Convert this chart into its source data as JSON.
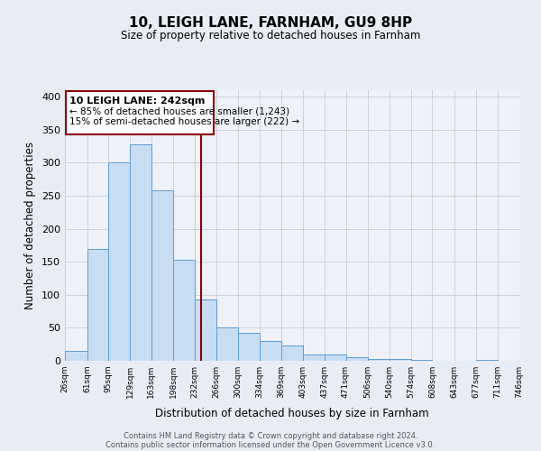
{
  "title": "10, LEIGH LANE, FARNHAM, GU9 8HP",
  "subtitle": "Size of property relative to detached houses in Farnham",
  "xlabel": "Distribution of detached houses by size in Farnham",
  "ylabel": "Number of detached properties",
  "bin_edges": [
    26,
    61,
    95,
    129,
    163,
    198,
    232,
    266,
    300,
    334,
    369,
    403,
    437,
    471,
    506,
    540,
    574,
    608,
    643,
    677,
    711
  ],
  "bar_heights": [
    15,
    170,
    300,
    328,
    258,
    153,
    93,
    50,
    43,
    30,
    23,
    10,
    10,
    5,
    3,
    3,
    1,
    0,
    0,
    2
  ],
  "bar_color": "#c9ddf2",
  "bar_edge_color": "#5b9bd5",
  "vline_x": 242,
  "vline_color": "#8b0000",
  "annotation_title": "10 LEIGH LANE: 242sqm",
  "annotation_line1": "← 85% of detached houses are smaller (1,243)",
  "annotation_line2": "15% of semi-detached houses are larger (222) →",
  "annotation_box_edge": "#8b0000",
  "ylim": [
    0,
    410
  ],
  "yticks": [
    0,
    50,
    100,
    150,
    200,
    250,
    300,
    350,
    400
  ],
  "footer_line1": "Contains HM Land Registry data © Crown copyright and database right 2024.",
  "footer_line2": "Contains public sector information licensed under the Open Government Licence v3.0.",
  "bg_color": "#e8edf5",
  "plot_bg_color": "#eef2f8",
  "grid_color": "#c8d0e0"
}
